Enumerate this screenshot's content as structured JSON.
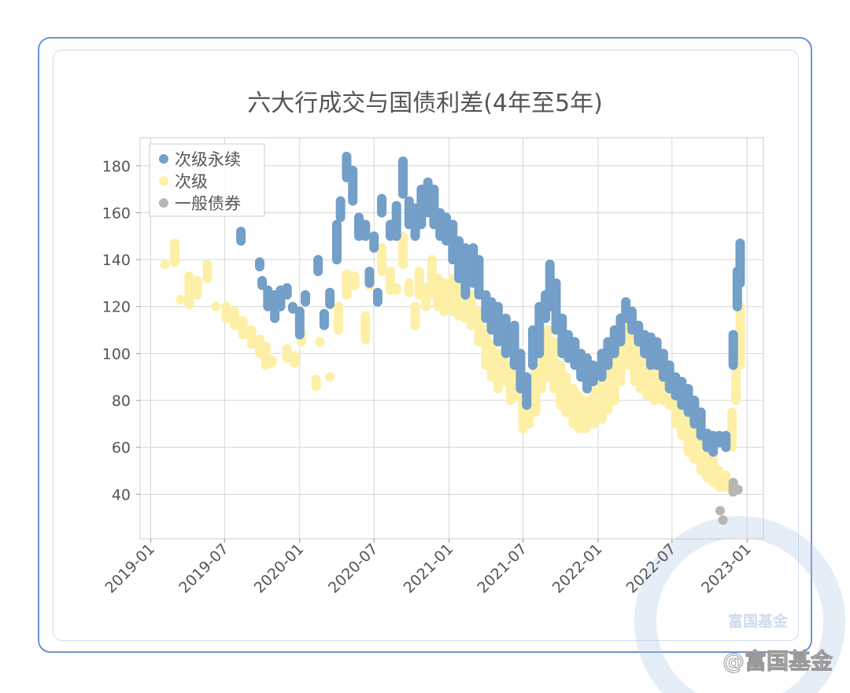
{
  "chart_data": {
    "type": "scatter",
    "title": "六大行成交与国债利差(4年至5年)",
    "xlabel": "",
    "ylabel": "",
    "xlim": [
      "2018-12-06",
      "2023-02-10"
    ],
    "ylim": [
      21,
      192
    ],
    "x_ticks": [
      "2019-01",
      "2019-07",
      "2020-01",
      "2020-07",
      "2021-01",
      "2021-07",
      "2022-01",
      "2022-07",
      "2023-01"
    ],
    "y_ticks": [
      40,
      60,
      80,
      100,
      120,
      140,
      160,
      180
    ],
    "grid": true,
    "legend": "top-left",
    "point_fields": [
      "date",
      "min",
      "max"
    ],
    "series": [
      {
        "name": "次级",
        "color": "#fdf0a6",
        "points": [
          [
            "2019-02-05",
            138,
            138
          ],
          [
            "2019-03-01",
            139,
            147
          ],
          [
            "2019-03-15",
            123,
            123
          ],
          [
            "2019-04-05",
            121,
            133
          ],
          [
            "2019-04-25",
            125,
            131
          ],
          [
            "2019-05-20",
            132,
            138
          ],
          [
            "2019-06-10",
            120,
            120
          ],
          [
            "2019-07-05",
            115,
            120
          ],
          [
            "2019-07-25",
            112,
            118
          ],
          [
            "2019-08-15",
            108,
            114
          ],
          [
            "2019-09-05",
            104,
            110
          ],
          [
            "2019-09-25",
            100,
            106
          ],
          [
            "2019-10-10",
            95,
            103
          ],
          [
            "2019-10-25",
            96,
            97
          ],
          [
            "2019-12-01",
            98,
            102
          ],
          [
            "2019-12-20",
            96,
            99
          ],
          [
            "2020-01-05",
            105,
            109
          ],
          [
            "2020-02-10",
            86,
            89
          ],
          [
            "2020-02-20",
            105,
            105
          ],
          [
            "2020-03-15",
            90,
            90
          ],
          [
            "2020-04-05",
            110,
            120
          ],
          [
            "2020-04-25",
            125,
            134
          ],
          [
            "2020-05-15",
            129,
            133
          ],
          [
            "2020-06-10",
            106,
            116
          ],
          [
            "2020-06-20",
            129,
            135
          ],
          [
            "2020-07-20",
            135,
            145
          ],
          [
            "2020-08-10",
            127,
            135
          ],
          [
            "2020-08-25",
            127,
            128
          ],
          [
            "2020-09-10",
            138,
            150
          ],
          [
            "2020-09-25",
            126,
            130
          ],
          [
            "2020-10-10",
            112,
            120
          ],
          [
            "2020-10-20",
            125,
            135
          ],
          [
            "2020-11-05",
            120,
            128
          ],
          [
            "2020-11-20",
            125,
            140
          ],
          [
            "2020-12-05",
            120,
            132
          ],
          [
            "2020-12-20",
            118,
            130
          ],
          [
            "2021-01-10",
            118,
            132
          ],
          [
            "2021-01-25",
            116,
            130
          ],
          [
            "2021-02-10",
            115,
            128
          ],
          [
            "2021-02-25",
            112,
            125
          ],
          [
            "2021-03-15",
            105,
            118
          ],
          [
            "2021-04-01",
            95,
            110
          ],
          [
            "2021-04-15",
            90,
            104
          ],
          [
            "2021-05-01",
            85,
            100
          ],
          [
            "2021-05-15",
            88,
            98
          ],
          [
            "2021-06-01",
            80,
            95
          ],
          [
            "2021-06-15",
            82,
            94
          ],
          [
            "2021-07-01",
            68,
            85
          ],
          [
            "2021-07-15",
            70,
            82
          ],
          [
            "2021-08-01",
            75,
            95
          ],
          [
            "2021-08-15",
            85,
            102
          ],
          [
            "2021-09-01",
            90,
            110
          ],
          [
            "2021-09-15",
            85,
            105
          ],
          [
            "2021-10-01",
            78,
            95
          ],
          [
            "2021-10-15",
            75,
            90
          ],
          [
            "2021-11-01",
            70,
            85
          ],
          [
            "2021-11-15",
            68,
            82
          ],
          [
            "2021-12-01",
            68,
            80
          ],
          [
            "2021-12-20",
            70,
            84
          ],
          [
            "2022-01-10",
            72,
            90
          ],
          [
            "2022-01-25",
            76,
            95
          ],
          [
            "2022-02-10",
            80,
            100
          ],
          [
            "2022-02-25",
            88,
            108
          ],
          [
            "2022-03-15",
            95,
            118
          ],
          [
            "2022-04-01",
            88,
            108
          ],
          [
            "2022-04-15",
            85,
            105
          ],
          [
            "2022-05-01",
            82,
            98
          ],
          [
            "2022-05-20",
            80,
            95
          ],
          [
            "2022-06-10",
            80,
            92
          ],
          [
            "2022-06-25",
            78,
            90
          ],
          [
            "2022-07-10",
            70,
            85
          ],
          [
            "2022-07-25",
            65,
            80
          ],
          [
            "2022-08-10",
            58,
            72
          ],
          [
            "2022-08-25",
            55,
            68
          ],
          [
            "2022-09-10",
            50,
            62
          ],
          [
            "2022-09-25",
            47,
            58
          ],
          [
            "2022-10-10",
            45,
            55
          ],
          [
            "2022-10-25",
            43,
            50
          ],
          [
            "2022-11-10",
            43,
            48
          ],
          [
            "2022-11-25",
            60,
            75
          ],
          [
            "2022-12-05",
            80,
            100
          ],
          [
            "2022-12-15",
            95,
            120
          ]
        ]
      },
      {
        "name": "次级永续",
        "color": "#739fc8",
        "points": [
          [
            "2019-08-10",
            148,
            152
          ],
          [
            "2019-09-25",
            137,
            139
          ],
          [
            "2019-10-01",
            129,
            131
          ],
          [
            "2019-10-15",
            120,
            127
          ],
          [
            "2019-11-01",
            115,
            125
          ],
          [
            "2019-11-15",
            120,
            127
          ],
          [
            "2019-12-01",
            125,
            128
          ],
          [
            "2019-12-15",
            119,
            120
          ],
          [
            "2020-01-01",
            108,
            118
          ],
          [
            "2020-01-15",
            122,
            125
          ],
          [
            "2020-02-15",
            135,
            140
          ],
          [
            "2020-03-01",
            112,
            117
          ],
          [
            "2020-03-15",
            121,
            126
          ],
          [
            "2020-04-01",
            140,
            155
          ],
          [
            "2020-04-10",
            158,
            165
          ],
          [
            "2020-04-25",
            175,
            184
          ],
          [
            "2020-05-10",
            165,
            178
          ],
          [
            "2020-05-25",
            150,
            158
          ],
          [
            "2020-06-10",
            150,
            155
          ],
          [
            "2020-06-20",
            130,
            135
          ],
          [
            "2020-07-01",
            145,
            150
          ],
          [
            "2020-07-10",
            122,
            126
          ],
          [
            "2020-07-20",
            160,
            166
          ],
          [
            "2020-08-10",
            150,
            155
          ],
          [
            "2020-08-25",
            150,
            163
          ],
          [
            "2020-09-10",
            168,
            182
          ],
          [
            "2020-09-25",
            155,
            165
          ],
          [
            "2020-10-10",
            150,
            162
          ],
          [
            "2020-10-25",
            155,
            170
          ],
          [
            "2020-11-10",
            160,
            173
          ],
          [
            "2020-11-25",
            155,
            170
          ],
          [
            "2020-12-10",
            150,
            160
          ],
          [
            "2020-12-25",
            148,
            158
          ],
          [
            "2021-01-10",
            140,
            155
          ],
          [
            "2021-01-25",
            132,
            148
          ],
          [
            "2021-02-10",
            125,
            145
          ],
          [
            "2021-03-01",
            130,
            145
          ],
          [
            "2021-03-15",
            125,
            140
          ],
          [
            "2021-04-01",
            115,
            125
          ],
          [
            "2021-04-15",
            110,
            122
          ],
          [
            "2021-05-01",
            105,
            120
          ],
          [
            "2021-05-20",
            100,
            115
          ],
          [
            "2021-06-10",
            95,
            112
          ],
          [
            "2021-06-25",
            85,
            100
          ],
          [
            "2021-07-10",
            78,
            90
          ],
          [
            "2021-07-25",
            95,
            110
          ],
          [
            "2021-08-10",
            100,
            120
          ],
          [
            "2021-08-25",
            115,
            125
          ],
          [
            "2021-09-05",
            120,
            138
          ],
          [
            "2021-09-20",
            110,
            130
          ],
          [
            "2021-10-05",
            100,
            115
          ],
          [
            "2021-10-20",
            98,
            108
          ],
          [
            "2021-11-05",
            95,
            105
          ],
          [
            "2021-11-20",
            90,
            100
          ],
          [
            "2021-12-05",
            85,
            98
          ],
          [
            "2021-12-20",
            88,
            95
          ],
          [
            "2022-01-10",
            90,
            100
          ],
          [
            "2022-01-25",
            95,
            105
          ],
          [
            "2022-02-10",
            100,
            110
          ],
          [
            "2022-02-25",
            105,
            115
          ],
          [
            "2022-03-10",
            115,
            122
          ],
          [
            "2022-03-25",
            110,
            118
          ],
          [
            "2022-04-10",
            105,
            112
          ],
          [
            "2022-04-25",
            100,
            108
          ],
          [
            "2022-05-10",
            95,
            107
          ],
          [
            "2022-05-25",
            95,
            105
          ],
          [
            "2022-06-10",
            90,
            100
          ],
          [
            "2022-06-25",
            85,
            95
          ],
          [
            "2022-07-10",
            82,
            90
          ],
          [
            "2022-07-25",
            78,
            88
          ],
          [
            "2022-08-10",
            75,
            85
          ],
          [
            "2022-08-25",
            70,
            80
          ],
          [
            "2022-09-10",
            65,
            75
          ],
          [
            "2022-09-25",
            60,
            66
          ],
          [
            "2022-10-10",
            58,
            65
          ],
          [
            "2022-10-25",
            62,
            65
          ],
          [
            "2022-11-10",
            60,
            65
          ],
          [
            "2022-11-28",
            95,
            108
          ],
          [
            "2022-12-08",
            120,
            135
          ],
          [
            "2022-12-15",
            130,
            147
          ]
        ]
      },
      {
        "name": "一般债券",
        "color": "#b8b6b1",
        "points": [
          [
            "2022-10-27",
            33,
            33
          ],
          [
            "2022-11-03",
            29,
            29
          ],
          [
            "2022-11-28",
            41,
            45
          ],
          [
            "2022-12-10",
            42,
            42
          ]
        ]
      }
    ]
  },
  "watermark": {
    "text": "@富国基金",
    "logo_text": "富国基金"
  }
}
